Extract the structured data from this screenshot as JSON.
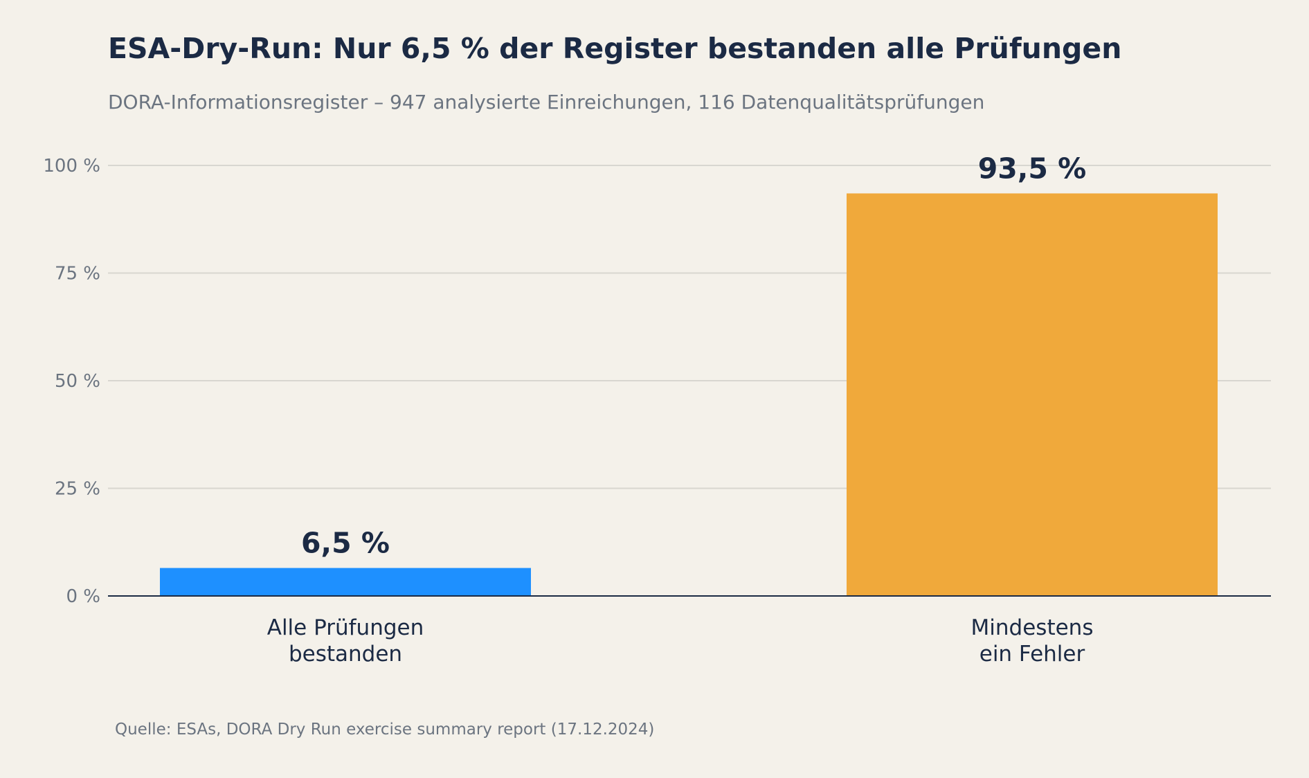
{
  "chart_data": {
    "type": "bar",
    "title": "ESA-Dry-Run: Nur 6,5 % der Register bestanden alle Prüfungen",
    "subtitle": "DORA-Informationsregister – 947 analysierte Einreichungen, 116 Datenqualitätsprüfungen",
    "categories": [
      [
        "Alle Prüfungen",
        "bestanden"
      ],
      [
        "Mindestens",
        "ein Fehler"
      ]
    ],
    "values": [
      6.5,
      93.5
    ],
    "value_labels": [
      "6,5 %",
      "93,5 %"
    ],
    "colors": [
      "#1e90ff",
      "#f0a93b"
    ],
    "yticks": [
      0,
      25,
      50,
      75,
      100
    ],
    "ytick_labels": [
      "0 %",
      "25 %",
      "50 %",
      "75 %",
      "100 %"
    ],
    "ylim": [
      0,
      100
    ],
    "grid": true,
    "xlabel": "",
    "ylabel": ""
  },
  "source": "Quelle: ESAs, DORA Dry Run exercise summary report (17.12.2024)"
}
